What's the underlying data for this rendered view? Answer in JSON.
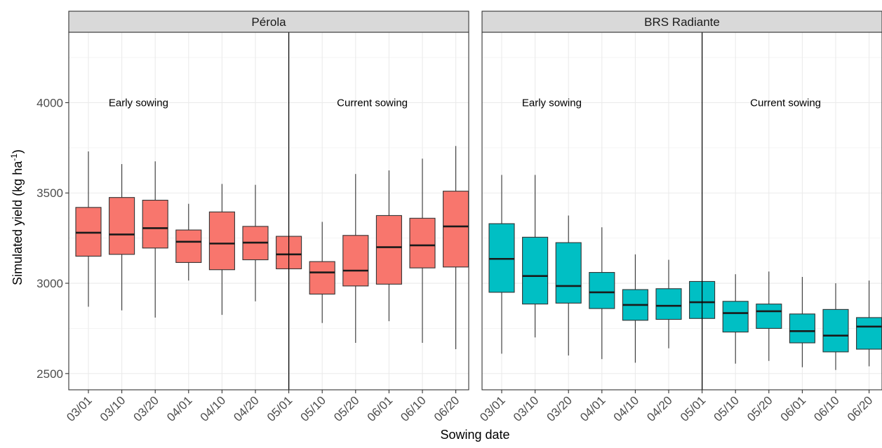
{
  "chart_data": {
    "type": "boxplot",
    "xlabel": "Sowing date",
    "ylabel": "Simulated yield (kg ha",
    "ylabel_unit_sup": "-1",
    "ylabel_close": ")",
    "ylim": [
      2410,
      4390
    ],
    "yticks": [
      2500,
      3000,
      3500,
      4000
    ],
    "categories": [
      "03/01",
      "03/10",
      "03/20",
      "04/01",
      "04/10",
      "04/20",
      "05/01",
      "05/10",
      "05/20",
      "06/01",
      "06/10",
      "06/20"
    ],
    "divider_at": "05/01",
    "annotations": [
      {
        "text": "Early sowing",
        "x_between": [
          "03/10",
          "03/20"
        ],
        "y": 4000
      },
      {
        "text": "Current sowing",
        "x_between": [
          "05/20",
          "06/01"
        ],
        "y": 4000
      }
    ],
    "panels": [
      {
        "name": "Pérola",
        "color": "#F8766D",
        "boxes": [
          {
            "min": 2870,
            "q1": 3150,
            "median": 3280,
            "q3": 3420,
            "max": 3730
          },
          {
            "min": 2850,
            "q1": 3160,
            "median": 3270,
            "q3": 3475,
            "max": 3660
          },
          {
            "min": 2810,
            "q1": 3195,
            "median": 3305,
            "q3": 3460,
            "max": 3675
          },
          {
            "min": 3015,
            "q1": 3115,
            "median": 3230,
            "q3": 3295,
            "max": 3440
          },
          {
            "min": 2825,
            "q1": 3075,
            "median": 3220,
            "q3": 3395,
            "max": 3550
          },
          {
            "min": 2900,
            "q1": 3130,
            "median": 3225,
            "q3": 3315,
            "max": 3545
          },
          {
            "min": 2410,
            "q1": 3080,
            "median": 3160,
            "q3": 3260,
            "max": 3260
          },
          {
            "min": 2780,
            "q1": 2940,
            "median": 3060,
            "q3": 3120,
            "max": 3340
          },
          {
            "min": 2670,
            "q1": 2985,
            "median": 3070,
            "q3": 3265,
            "max": 3605
          },
          {
            "min": 2790,
            "q1": 2995,
            "median": 3200,
            "q3": 3375,
            "max": 3625
          },
          {
            "min": 2670,
            "q1": 3085,
            "median": 3210,
            "q3": 3360,
            "max": 3690
          },
          {
            "min": 2635,
            "q1": 3090,
            "median": 3315,
            "q3": 3510,
            "max": 3760
          }
        ]
      },
      {
        "name": "BRS Radiante",
        "color": "#00BFC4",
        "boxes": [
          {
            "min": 2610,
            "q1": 2950,
            "median": 3135,
            "q3": 3330,
            "max": 3600
          },
          {
            "min": 2700,
            "q1": 2885,
            "median": 3040,
            "q3": 3255,
            "max": 3600
          },
          {
            "min": 2600,
            "q1": 2890,
            "median": 2985,
            "q3": 3225,
            "max": 3375
          },
          {
            "min": 2580,
            "q1": 2860,
            "median": 2950,
            "q3": 3060,
            "max": 3310
          },
          {
            "min": 2560,
            "q1": 2795,
            "median": 2880,
            "q3": 2965,
            "max": 3160
          },
          {
            "min": 2640,
            "q1": 2800,
            "median": 2875,
            "q3": 2970,
            "max": 3130
          },
          {
            "min": 2410,
            "q1": 2805,
            "median": 2895,
            "q3": 3010,
            "max": 3010
          },
          {
            "min": 2555,
            "q1": 2730,
            "median": 2835,
            "q3": 2900,
            "max": 3050
          },
          {
            "min": 2570,
            "q1": 2750,
            "median": 2845,
            "q3": 2885,
            "max": 3065
          },
          {
            "min": 2535,
            "q1": 2670,
            "median": 2735,
            "q3": 2830,
            "max": 3035
          },
          {
            "min": 2520,
            "q1": 2620,
            "median": 2710,
            "q3": 2855,
            "max": 3000
          },
          {
            "min": 2540,
            "q1": 2635,
            "median": 2760,
            "q3": 2810,
            "max": 3015
          }
        ]
      }
    ]
  }
}
